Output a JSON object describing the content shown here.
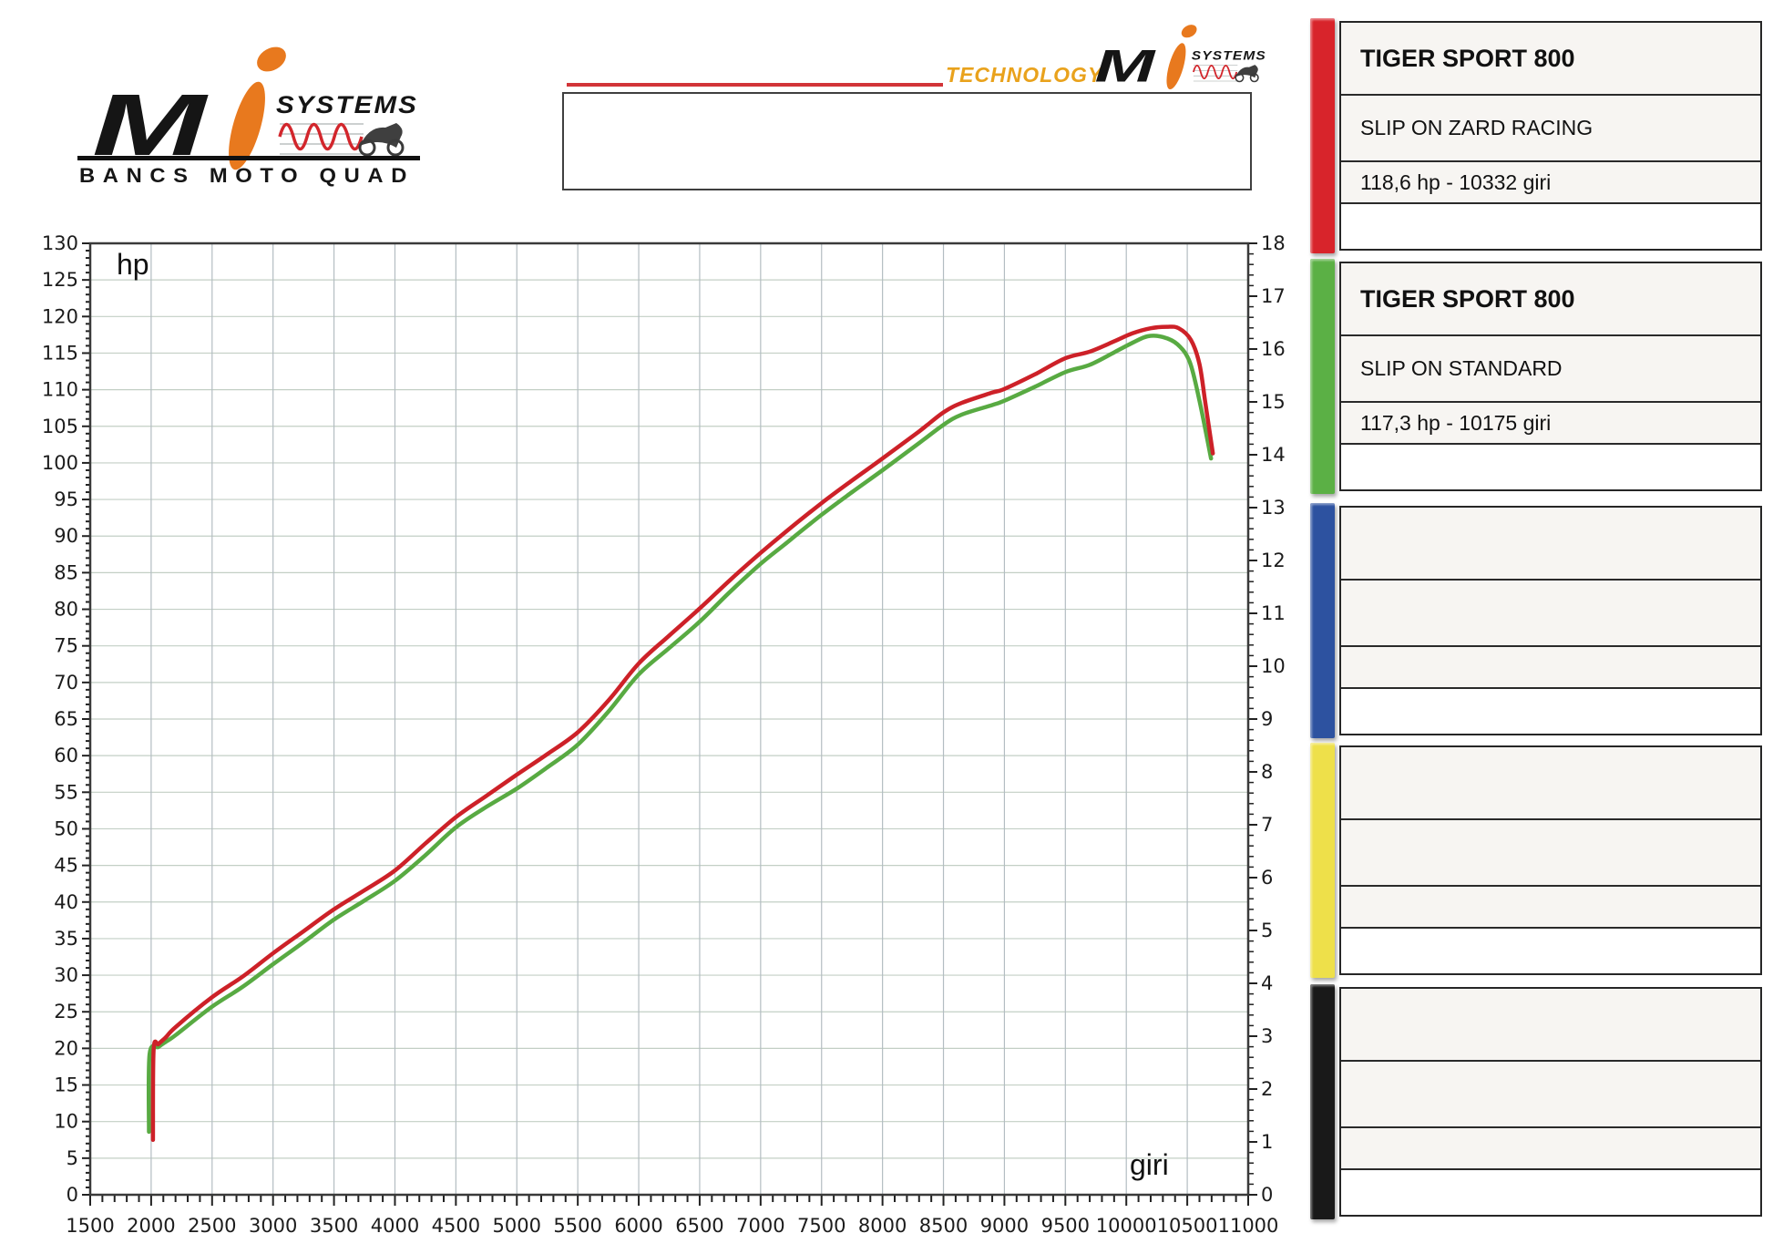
{
  "brand": {
    "m": "M",
    "i": "i",
    "systems": "SYSTEMS",
    "tagline": "BANCS MOTO QUAD",
    "technology_label": "TECHNOLOGY",
    "accent_orange": "#e8791e",
    "accent_red": "#d2262c"
  },
  "cards": [
    {
      "accent": "#d8242b",
      "rows": [
        "TIGER SPORT 800",
        "SLIP ON ZARD RACING",
        "118,6 hp - 10332 giri",
        ""
      ]
    },
    {
      "accent": "#5bb045",
      "rows": [
        "TIGER SPORT 800",
        "SLIP ON STANDARD",
        "117,3 hp - 10175 giri",
        ""
      ]
    },
    {
      "accent": "#2d52a0",
      "rows": [
        "",
        "",
        "",
        ""
      ]
    },
    {
      "accent": "#eee04a",
      "rows": [
        "",
        "",
        "",
        ""
      ]
    },
    {
      "accent": "#191919",
      "rows": [
        "",
        "",
        "",
        ""
      ]
    }
  ],
  "chart_data": {
    "type": "line",
    "xlabel": "giri",
    "ylabel_left": "hp",
    "x_range": [
      1500,
      11000
    ],
    "y_left_range": [
      0,
      130
    ],
    "y_right_range": [
      0,
      18
    ],
    "x_ticks": [
      1500,
      2000,
      2500,
      3000,
      3500,
      4000,
      4500,
      5000,
      5500,
      6000,
      6500,
      7000,
      7500,
      8000,
      8500,
      9000,
      9500,
      10000,
      10500,
      11000
    ],
    "y_left_ticks": [
      0,
      5,
      10,
      15,
      20,
      25,
      30,
      35,
      40,
      45,
      50,
      55,
      60,
      65,
      70,
      75,
      80,
      85,
      90,
      95,
      100,
      105,
      110,
      115,
      120,
      125,
      130
    ],
    "y_right_ticks": [
      0,
      1,
      2,
      3,
      4,
      5,
      6,
      7,
      8,
      9,
      10,
      11,
      12,
      13,
      14,
      15,
      16,
      17,
      18
    ],
    "x_minor_step": 100,
    "y_left_minor_step": 1,
    "y_right_minor_step": 0.2,
    "grid": true,
    "grid_color_h": "#c3cfc5",
    "grid_color_v": "#b3bdc2",
    "series": [
      {
        "name": "SLIP ON STANDARD",
        "color": "#58aa42",
        "peak_label": "117,3 hp - 10175 giri",
        "points": [
          [
            1982,
            8.6
          ],
          [
            1987,
            19.2
          ],
          [
            2060,
            20.2
          ],
          [
            2120,
            20.9
          ],
          [
            2200,
            21.8
          ],
          [
            2500,
            25.7
          ],
          [
            2750,
            28.4
          ],
          [
            3000,
            31.5
          ],
          [
            3250,
            34.5
          ],
          [
            3500,
            37.6
          ],
          [
            3750,
            40.2
          ],
          [
            4000,
            42.9
          ],
          [
            4250,
            46.4
          ],
          [
            4500,
            50.2
          ],
          [
            4750,
            53.0
          ],
          [
            5000,
            55.5
          ],
          [
            5250,
            58.4
          ],
          [
            5500,
            61.5
          ],
          [
            5750,
            66.0
          ],
          [
            6000,
            71.1
          ],
          [
            6250,
            74.7
          ],
          [
            6500,
            78.3
          ],
          [
            6750,
            82.4
          ],
          [
            7000,
            86.2
          ],
          [
            7200,
            88.9
          ],
          [
            7500,
            92.9
          ],
          [
            7750,
            96.0
          ],
          [
            8000,
            99.0
          ],
          [
            8300,
            102.7
          ],
          [
            8500,
            105.2
          ],
          [
            8650,
            106.6
          ],
          [
            8900,
            107.9
          ],
          [
            9000,
            108.5
          ],
          [
            9250,
            110.4
          ],
          [
            9500,
            112.4
          ],
          [
            9700,
            113.4
          ],
          [
            9900,
            115.1
          ],
          [
            10050,
            116.4
          ],
          [
            10175,
            117.3
          ],
          [
            10300,
            117.2
          ],
          [
            10420,
            116.2
          ],
          [
            10520,
            113.8
          ],
          [
            10600,
            108.5
          ],
          [
            10695,
            100.6
          ]
        ]
      },
      {
        "name": "SLIP ON ZARD RACING",
        "color": "#cd2128",
        "peak_label": "118,6 hp - 10332 giri",
        "points": [
          [
            2015,
            7.5
          ],
          [
            2020,
            19.8
          ],
          [
            2060,
            20.6
          ],
          [
            2120,
            21.5
          ],
          [
            2200,
            22.9
          ],
          [
            2500,
            27.0
          ],
          [
            2750,
            29.8
          ],
          [
            3000,
            33.0
          ],
          [
            3250,
            36.0
          ],
          [
            3500,
            39.0
          ],
          [
            3750,
            41.6
          ],
          [
            4000,
            44.3
          ],
          [
            4250,
            48.0
          ],
          [
            4500,
            51.6
          ],
          [
            4750,
            54.5
          ],
          [
            5000,
            57.4
          ],
          [
            5250,
            60.2
          ],
          [
            5500,
            63.2
          ],
          [
            5750,
            67.5
          ],
          [
            6000,
            72.6
          ],
          [
            6250,
            76.4
          ],
          [
            6500,
            80.1
          ],
          [
            6750,
            84.0
          ],
          [
            7000,
            87.7
          ],
          [
            7200,
            90.5
          ],
          [
            7500,
            94.5
          ],
          [
            7750,
            97.6
          ],
          [
            8000,
            100.6
          ],
          [
            8300,
            104.3
          ],
          [
            8500,
            106.9
          ],
          [
            8650,
            108.2
          ],
          [
            8900,
            109.6
          ],
          [
            9000,
            110.1
          ],
          [
            9250,
            112.1
          ],
          [
            9500,
            114.3
          ],
          [
            9700,
            115.2
          ],
          [
            9900,
            116.6
          ],
          [
            10050,
            117.7
          ],
          [
            10200,
            118.4
          ],
          [
            10332,
            118.6
          ],
          [
            10430,
            118.4
          ],
          [
            10530,
            116.8
          ],
          [
            10600,
            113.5
          ],
          [
            10650,
            108.0
          ],
          [
            10710,
            101.3
          ]
        ]
      }
    ]
  }
}
